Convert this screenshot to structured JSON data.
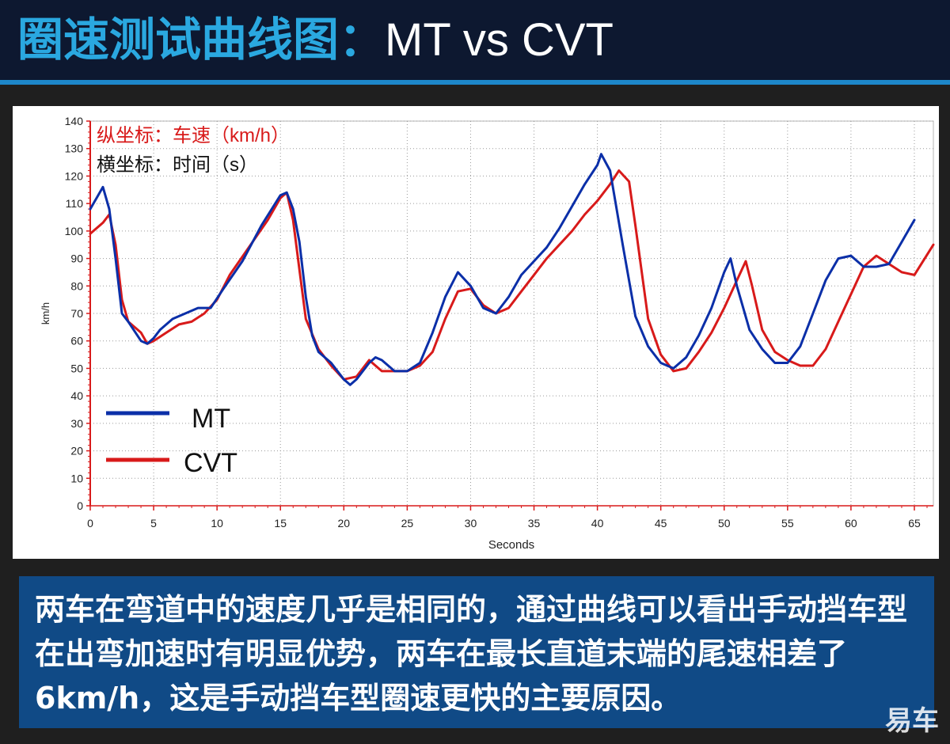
{
  "header": {
    "title_cn": "圈速测试曲线图：",
    "title_en": "MT vs CVT"
  },
  "caption": "两车在弯道中的速度几乎是相同的，通过曲线可以看出手动挡车型在出弯加速时有明显优势，两车在最长直道末端的尾速相差了6km/h，这是手动挡车型圈速更快的主要原因。",
  "watermark": "易车",
  "colors": {
    "mt": "#0b2fa8",
    "cvt": "#d81a1a",
    "axis": "#d81a1a"
  },
  "chart_data": {
    "type": "line",
    "xlabel": "Seconds",
    "ylabel": "km/h",
    "xlim": [
      0,
      66.5
    ],
    "ylim": [
      0,
      140
    ],
    "xticks": [
      0,
      5,
      10,
      15,
      20,
      25,
      30,
      35,
      40,
      45,
      50,
      55,
      60,
      65
    ],
    "yticks": [
      0,
      10,
      20,
      30,
      40,
      50,
      60,
      70,
      80,
      90,
      100,
      110,
      120,
      130,
      140
    ],
    "grid": true,
    "annotations": [
      "纵坐标：车速（km/h）",
      "横坐标：时间（s）"
    ],
    "legend_position": "bottom-left",
    "series": [
      {
        "name": "MT",
        "x": [
          0,
          0.5,
          1,
          1.5,
          2,
          2.5,
          3,
          4,
          4.5,
          5,
          5.5,
          6.5,
          7.5,
          8.5,
          9.5,
          10.5,
          12,
          13.5,
          15,
          15.5,
          16,
          16.5,
          17,
          17.5,
          18,
          19,
          20,
          20.5,
          21,
          22,
          22.5,
          23,
          24,
          25,
          26,
          27,
          28,
          29,
          30,
          31,
          32,
          33,
          34,
          35,
          36,
          37,
          38,
          39,
          40,
          40.3,
          41,
          42,
          43,
          44,
          45,
          46,
          47,
          48,
          49,
          50,
          50.5,
          51,
          52,
          53,
          54,
          55,
          56,
          57,
          58,
          59,
          60,
          61,
          62,
          63,
          64,
          65
        ],
        "values": [
          108,
          112,
          116,
          108,
          90,
          70,
          67,
          60,
          59,
          61,
          64,
          68,
          70,
          72,
          72,
          79,
          89,
          102,
          113,
          114,
          108,
          96,
          76,
          62,
          56,
          52,
          46,
          44,
          46,
          52,
          54,
          53,
          49,
          49,
          52,
          63,
          76,
          85,
          80,
          72,
          70,
          76,
          84,
          89,
          94,
          101,
          109,
          117,
          124,
          128,
          122,
          95,
          69,
          58,
          52,
          50,
          54,
          62,
          72,
          85,
          90,
          80,
          64,
          57,
          52,
          52,
          58,
          70,
          82,
          90,
          91,
          87,
          87,
          88,
          96,
          104
        ]
      },
      {
        "name": "CVT",
        "x": [
          0,
          1,
          1.5,
          2,
          2.5,
          3,
          4,
          4.5,
          5,
          6,
          7,
          8,
          9,
          10,
          11,
          12.5,
          14,
          15,
          15.5,
          16,
          16.5,
          17,
          18,
          19,
          20,
          21,
          22,
          23,
          24,
          25,
          26,
          27,
          28,
          29,
          30,
          31,
          32,
          33,
          34,
          35,
          36,
          37,
          38,
          39,
          40,
          41,
          41.7,
          42.5,
          43,
          44,
          45,
          46,
          47,
          48,
          49,
          50,
          51,
          51.7,
          52.2,
          53,
          54,
          55,
          56,
          57,
          58,
          59,
          60,
          61,
          62,
          63,
          64,
          65,
          66.5
        ],
        "values": [
          99,
          103,
          106,
          95,
          75,
          67,
          63,
          59,
          60,
          63,
          66,
          67,
          70,
          75,
          84,
          94,
          104,
          112,
          114,
          104,
          86,
          68,
          57,
          51,
          46,
          47,
          53,
          49,
          49,
          49,
          51,
          56,
          68,
          78,
          79,
          73,
          70,
          72,
          78,
          84,
          90,
          95,
          100,
          106,
          111,
          117,
          122,
          118,
          102,
          68,
          55,
          49,
          50,
          56,
          63,
          72,
          82,
          89,
          80,
          64,
          56,
          53,
          51,
          51,
          57,
          67,
          77,
          87,
          91,
          88,
          85,
          84,
          95
        ]
      }
    ]
  }
}
